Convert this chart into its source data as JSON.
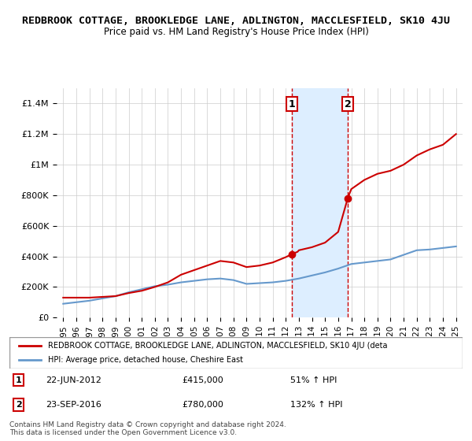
{
  "title": "REDBROOK COTTAGE, BROOKLEDGE LANE, ADLINGTON, MACCLESFIELD, SK10 4JU",
  "subtitle": "Price paid vs. HM Land Registry's House Price Index (HPI)",
  "title_fontsize": 10,
  "subtitle_fontsize": 9,
  "ylim": [
    0,
    1500000
  ],
  "yticks": [
    0,
    200000,
    400000,
    600000,
    800000,
    1000000,
    1200000,
    1400000
  ],
  "ytick_labels": [
    "£0",
    "£200K",
    "£400K",
    "£600K",
    "£800K",
    "£1M",
    "£1.2M",
    "£1.4M"
  ],
  "xlim_start": 1994.5,
  "xlim_end": 2025.5,
  "xticks": [
    1995,
    1996,
    1997,
    1998,
    1999,
    2000,
    2001,
    2002,
    2003,
    2004,
    2005,
    2006,
    2007,
    2008,
    2009,
    2010,
    2011,
    2012,
    2013,
    2014,
    2015,
    2016,
    2017,
    2018,
    2019,
    2020,
    2021,
    2022,
    2023,
    2024,
    2025
  ],
  "sale1_x": 2012.47,
  "sale1_y": 415000,
  "sale1_label": "1",
  "sale1_date": "22-JUN-2012",
  "sale1_price": "£415,000",
  "sale1_hpi": "51% ↑ HPI",
  "sale2_x": 2016.73,
  "sale2_y": 780000,
  "sale2_label": "2",
  "sale2_date": "23-SEP-2016",
  "sale2_price": "£780,000",
  "sale2_hpi": "132% ↑ HPI",
  "red_color": "#cc0000",
  "blue_color": "#6699cc",
  "highlight_box_color": "#ddeeff",
  "grid_color": "#cccccc",
  "legend_line1": "REDBROOK COTTAGE, BROOKLEDGE LANE, ADLINGTON, MACCLESFIELD, SK10 4JU (deta",
  "legend_line2": "HPI: Average price, detached house, Cheshire East",
  "footer": "Contains HM Land Registry data © Crown copyright and database right 2024.\nThis data is licensed under the Open Government Licence v3.0.",
  "red_x": [
    1995,
    1996,
    1997,
    1998,
    1999,
    2000,
    2001,
    2002,
    2003,
    2004,
    2005,
    2006,
    2007,
    2008,
    2009,
    2010,
    2011,
    2012.0,
    2012.47,
    2012.9,
    2013,
    2014,
    2015,
    2016.0,
    2016.73,
    2017,
    2018,
    2019,
    2020,
    2021,
    2022,
    2023,
    2024,
    2025
  ],
  "red_y": [
    130000,
    130000,
    130000,
    135000,
    140000,
    160000,
    175000,
    200000,
    230000,
    280000,
    310000,
    340000,
    370000,
    360000,
    330000,
    340000,
    360000,
    395000,
    415000,
    430000,
    440000,
    460000,
    490000,
    560000,
    780000,
    840000,
    900000,
    940000,
    960000,
    1000000,
    1060000,
    1100000,
    1130000,
    1200000
  ],
  "blue_x": [
    1995,
    1996,
    1997,
    1998,
    1999,
    2000,
    2001,
    2002,
    2003,
    2004,
    2005,
    2006,
    2007,
    2008,
    2009,
    2010,
    2011,
    2012,
    2013,
    2014,
    2015,
    2016,
    2017,
    2018,
    2019,
    2020,
    2021,
    2022,
    2023,
    2024,
    2025
  ],
  "blue_y": [
    90000,
    100000,
    110000,
    125000,
    140000,
    165000,
    185000,
    205000,
    215000,
    230000,
    240000,
    250000,
    255000,
    245000,
    220000,
    225000,
    230000,
    240000,
    255000,
    275000,
    295000,
    320000,
    350000,
    360000,
    370000,
    380000,
    410000,
    440000,
    445000,
    455000,
    465000
  ]
}
